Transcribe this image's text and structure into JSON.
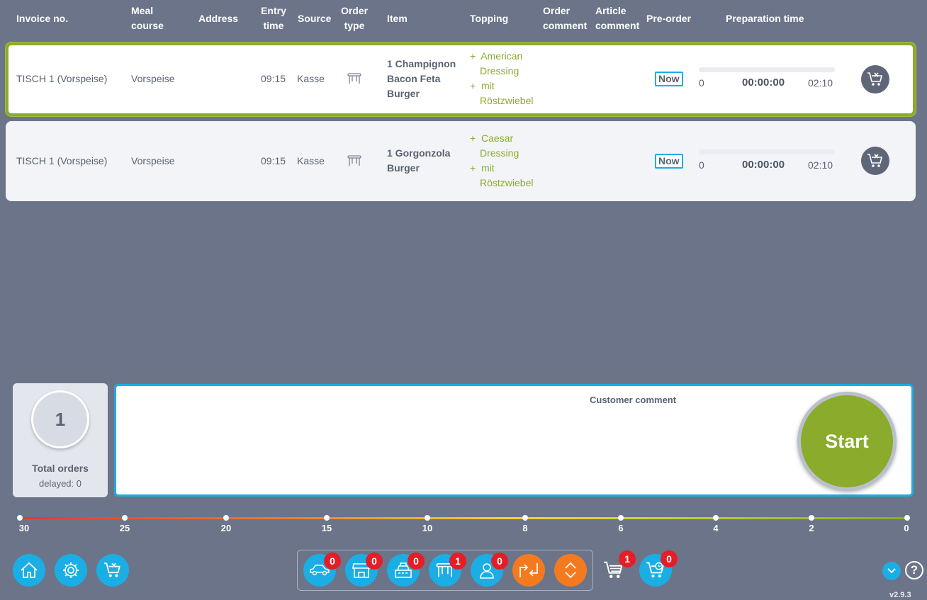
{
  "header": {
    "invoice": "Invoice no.",
    "meal_course": "Meal course",
    "address": "Address",
    "entry_time": "Entry time",
    "source": "Source",
    "order_type": "Order type",
    "item": "Item",
    "topping": "Topping",
    "order_comment": "Order comment",
    "article_comment": "Article comment",
    "pre_order": "Pre-order",
    "preparation_time": "Preparation time"
  },
  "orders": [
    {
      "invoice": "TISCH 1 (Vorspeise)",
      "meal_course": "Vorspeise",
      "entry_time": "09:15",
      "source": "Kasse",
      "order_type_icon": "table-icon",
      "item": "1 Champignon Bacon Feta Burger",
      "item_lines": [
        "1  Champignon",
        "Bacon Feta",
        "Burger"
      ],
      "toppings": [
        {
          "plus": "+",
          "lines": [
            "American",
            "Dressing"
          ]
        },
        {
          "plus": "+",
          "lines": [
            "mit",
            "Röstzwiebel"
          ]
        }
      ],
      "pre_order": "Now",
      "prep_start": "0",
      "prep_elapsed": "00:00:00",
      "prep_end": "02:10",
      "progress": 0,
      "selected": true
    },
    {
      "invoice": "TISCH 1 (Vorspeise)",
      "meal_course": "Vorspeise",
      "entry_time": "09:15",
      "source": "Kasse",
      "order_type_icon": "table-icon",
      "item": "1 Gorgonzola Burger",
      "item_lines": [
        "1  Gorgonzola",
        "Burger"
      ],
      "toppings": [
        {
          "plus": "+",
          "lines": [
            "Caesar",
            "Dressing"
          ]
        },
        {
          "plus": "+",
          "lines": [
            "mit",
            "Röstzwiebel"
          ]
        }
      ],
      "pre_order": "Now",
      "prep_start": "0",
      "prep_elapsed": "00:00:00",
      "prep_end": "02:10",
      "progress": 0,
      "selected": false
    }
  ],
  "summary": {
    "total_count": "1",
    "total_label": "Total orders",
    "delayed": "delayed: 0"
  },
  "comment": {
    "title": "Customer comment"
  },
  "start_label": "Start",
  "timeline": {
    "ticks": [
      "30",
      "25",
      "20",
      "15",
      "10",
      "8",
      "6",
      "4",
      "2",
      "0"
    ],
    "colors": {
      "start": "#e23a2e",
      "end": "#8aab2b"
    }
  },
  "bottom": {
    "left_buttons": [
      "home-icon",
      "gear-icon",
      "cart-cancel-icon"
    ],
    "filters": [
      {
        "icon": "car-icon",
        "count": "0"
      },
      {
        "icon": "shop-icon",
        "count": "0"
      },
      {
        "icon": "cash-register-icon",
        "count": "0"
      },
      {
        "icon": "table-icon",
        "count": "1"
      },
      {
        "icon": "person-icon",
        "count": "0"
      }
    ],
    "cart_count": "1",
    "scheduled_cart_count": "0",
    "help": "?",
    "version": "v2.9.3"
  },
  "colors": {
    "background": "#6b7489",
    "accent_blue": "#1aaee5",
    "accent_green": "#8aab2b",
    "accent_orange": "#f47a20",
    "badge_red": "#e41e26"
  }
}
